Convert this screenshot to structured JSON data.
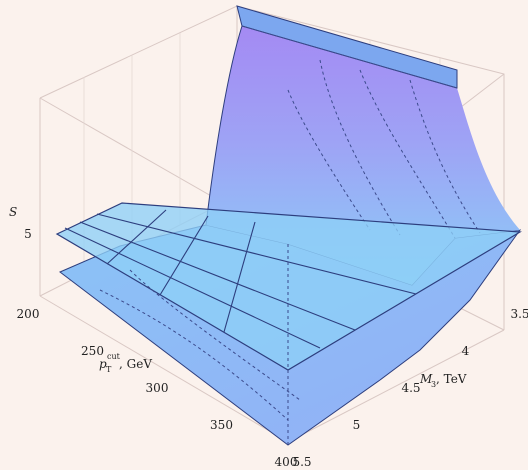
{
  "chart_data": {
    "type": "surface3d",
    "title": "",
    "zlabel": "S",
    "xlabel": "p_T^{cut}, GeV",
    "xlabel_main": "p",
    "xlabel_sub": "T",
    "xlabel_sup": "cut",
    "xlabel_unit": ", GeV",
    "ylabel": "M_3, TeV",
    "ylabel_main": "M",
    "ylabel_sub": "3",
    "ylabel_unit": ", TeV",
    "x_ticks": [
      "200",
      "250",
      "300",
      "350",
      "400"
    ],
    "y_ticks": [
      "3.5",
      "4",
      "4.5",
      "5",
      "5.5"
    ],
    "z_ticks": [
      "5"
    ],
    "x_range": [
      200,
      400
    ],
    "y_range": [
      3.5,
      5.5
    ],
    "reference_plane_value": 5,
    "grid": true,
    "colors": {
      "background": "#fbf2ed",
      "surface_top": "#a289f2",
      "surface_mid": "#97b0f6",
      "surface_low": "#8fd0f7",
      "plane": "#8ecff7",
      "mesh": "#2d3e7e"
    },
    "legend": "none"
  }
}
